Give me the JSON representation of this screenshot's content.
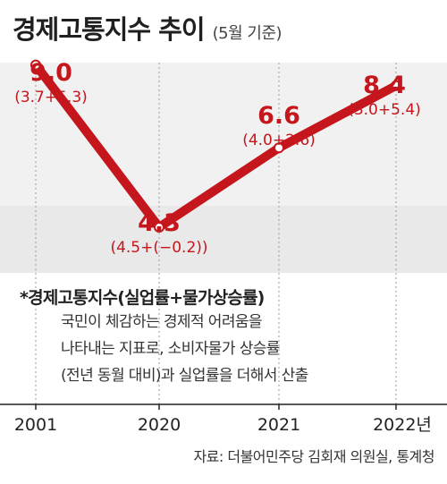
{
  "header": {
    "title": "경제고통지수 추이",
    "subtitle": "(5월 기준)"
  },
  "chart_data": {
    "type": "line",
    "title": "경제고통지수 추이",
    "subtitle": "(5월 기준)",
    "categories": [
      "2001",
      "2020",
      "2021",
      "2022년"
    ],
    "values": [
      9.0,
      4.3,
      6.6,
      8.4
    ],
    "value_labels": [
      "9.0",
      "4.3",
      "6.6",
      "8.4"
    ],
    "breakdowns": [
      "(3.7+5.3)",
      "(4.5+(−0.2))",
      "(4.0+2.6)",
      "(3.0+5.4)"
    ],
    "ylim": [
      0,
      10
    ],
    "line_color": "#c4161c",
    "grid": false
  },
  "footnote": {
    "heading": "*경제고통지수(실업률+물가상승률)",
    "lines": [
      "국민이 체감하는 경제적 어려움을",
      "나타내는 지표로, 소비자물가 상승률",
      "(전년 동월 대비)과 실업률을 더해서 산출"
    ]
  },
  "source": "자료: 더불어민주당 김회재 의원실, 통계청"
}
